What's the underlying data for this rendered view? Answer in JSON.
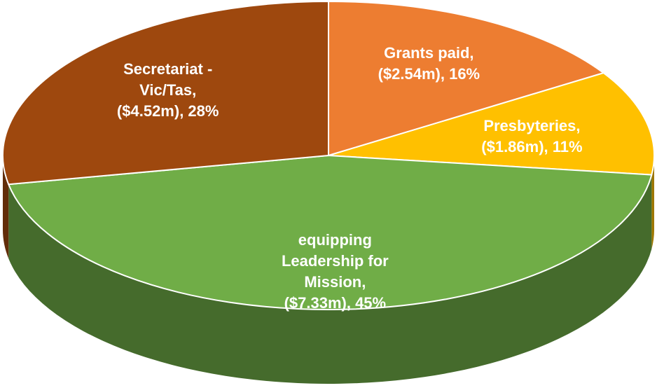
{
  "chart_data": {
    "type": "pie",
    "categories": [
      "Grants paid,",
      "Presbyteries,",
      "equipping Leadership for Mission,",
      "Secretariat - Vic/Tas,"
    ],
    "values": [
      16,
      11,
      45,
      28
    ],
    "value_labels": [
      "($2.54m), 16%",
      "($1.86m), 11%",
      "($7.33m), 45%",
      "($4.52m), 28%"
    ],
    "colors": [
      "#ed7d31",
      "#ffc000",
      "#70ad47",
      "#9e480e"
    ]
  }
}
